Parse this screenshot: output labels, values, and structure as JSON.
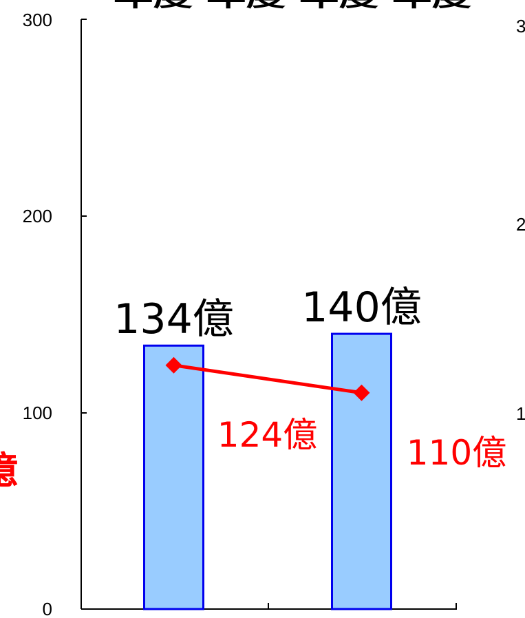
{
  "chart_data": {
    "type": "bar",
    "categories": [
      "",
      ""
    ],
    "series": [
      {
        "type": "bar",
        "values": [
          134,
          140
        ],
        "labels": [
          "134億",
          "140億"
        ],
        "color": "#99ccff",
        "border_color": "#0000ee"
      },
      {
        "type": "line",
        "values": [
          124,
          110
        ],
        "labels": [
          "124億",
          "110億"
        ],
        "color": "#ff0000"
      }
    ],
    "ylim": [
      0,
      300
    ],
    "yticks": [
      0,
      100,
      200,
      300
    ],
    "ytick_labels": [
      "0",
      "100",
      "200",
      "300"
    ],
    "grid": false,
    "partial_texts": {
      "top_cut": "年度 年度 年度 年度",
      "left_cut": "億",
      "right_axis_cut": [
        "3",
        "2",
        "1"
      ]
    }
  }
}
